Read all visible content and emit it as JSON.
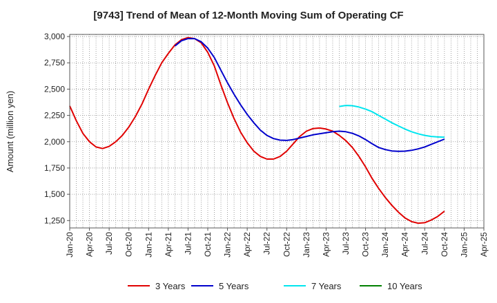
{
  "chart_data": {
    "type": "line",
    "title": "[9743]  Trend of Mean of 12-Month Moving Sum of Operating CF",
    "xlabel": "",
    "ylabel": "Amount (million yen)",
    "ylim": [
      1180,
      3020
    ],
    "yticks": [
      1250,
      1500,
      1750,
      2000,
      2250,
      2500,
      2750,
      3000
    ],
    "ytick_labels": [
      "1,250",
      "1,500",
      "1,750",
      "2,000",
      "2,250",
      "2,500",
      "2,750",
      "3,000"
    ],
    "xlim": [
      0,
      63
    ],
    "xtick_positions": [
      0,
      3,
      6,
      9,
      12,
      15,
      18,
      21,
      24,
      27,
      30,
      33,
      36,
      39,
      42,
      45,
      48,
      51,
      54,
      57,
      60,
      63
    ],
    "xtick_labels": [
      "Jan-20",
      "Apr-20",
      "Jul-20",
      "Oct-20",
      "Jan-21",
      "Apr-21",
      "Jul-21",
      "Oct-21",
      "Jan-22",
      "Apr-22",
      "Jul-22",
      "Oct-22",
      "Jan-23",
      "Apr-23",
      "Jul-23",
      "Oct-23",
      "Jan-24",
      "Apr-24",
      "Jul-24",
      "Oct-24",
      "Jan-25",
      "Apr-25"
    ],
    "grid": true,
    "legend_position": "bottom",
    "series": [
      {
        "name": "3 Years",
        "color": "#e00000",
        "x_start": 0,
        "values": [
          2340,
          2200,
          2080,
          2000,
          1950,
          1935,
          1955,
          2000,
          2060,
          2140,
          2240,
          2360,
          2500,
          2630,
          2750,
          2840,
          2920,
          2970,
          2990,
          2980,
          2940,
          2850,
          2720,
          2540,
          2370,
          2220,
          2090,
          1990,
          1910,
          1860,
          1835,
          1835,
          1860,
          1910,
          1980,
          2050,
          2100,
          2125,
          2130,
          2120,
          2100,
          2060,
          2010,
          1945,
          1860,
          1760,
          1650,
          1555,
          1470,
          1395,
          1330,
          1275,
          1240,
          1225,
          1230,
          1255,
          1290,
          1340
        ]
      },
      {
        "name": "5 Years",
        "color": "#0000cc",
        "x_start": 16,
        "values": [
          2910,
          2960,
          2980,
          2980,
          2950,
          2890,
          2800,
          2680,
          2560,
          2450,
          2350,
          2260,
          2180,
          2110,
          2060,
          2030,
          2015,
          2012,
          2020,
          2035,
          2050,
          2065,
          2075,
          2085,
          2095,
          2100,
          2095,
          2080,
          2055,
          2020,
          1980,
          1945,
          1925,
          1912,
          1908,
          1910,
          1918,
          1932,
          1950,
          1975,
          2000,
          2025
        ]
      },
      {
        "name": "7 Years",
        "color": "#00e5ee",
        "x_start": 41,
        "values": [
          2335,
          2345,
          2342,
          2330,
          2310,
          2285,
          2250,
          2215,
          2180,
          2150,
          2120,
          2095,
          2075,
          2060,
          2050,
          2045,
          2043
        ]
      },
      {
        "name": "10 Years",
        "color": "#008000",
        "x_start": 0,
        "values": []
      }
    ]
  }
}
